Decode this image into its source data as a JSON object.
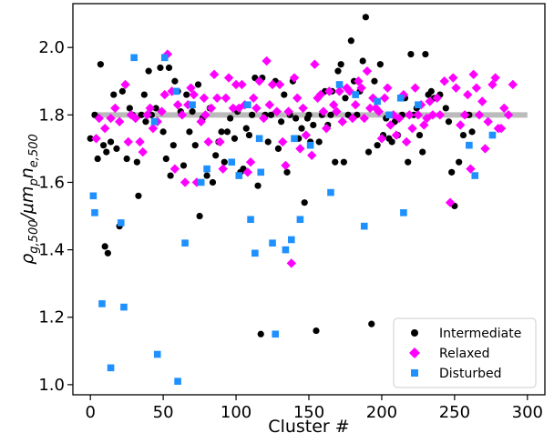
{
  "chart_data": {
    "type": "scatter",
    "xlabel": "Cluster #",
    "ylabel_main": "ρ",
    "ylabel_main_sub": "g,500",
    "ylabel_mid": "/μm",
    "ylabel_mid_sub": "p",
    "ylabel_tail": "n",
    "ylabel_tail_sub": "e,500",
    "xlim": [
      -12,
      312
    ],
    "ylim": [
      0.97,
      2.13
    ],
    "xticks": [
      "0",
      "50",
      "100",
      "150",
      "200",
      "250",
      "300"
    ],
    "yticks": [
      "1.0",
      "1.2",
      "1.4",
      "1.6",
      "1.8",
      "2.0"
    ],
    "reference_band": {
      "y": 1.8,
      "x_range": [
        1,
        300
      ],
      "color": "#bbbbbb"
    },
    "grid": false,
    "legend_position": "lower-right",
    "series": [
      {
        "name": "Intermediate",
        "marker": "circle",
        "color": "#000000",
        "points": [
          [
            0,
            1.73
          ],
          [
            3,
            1.8
          ],
          [
            5,
            1.67
          ],
          [
            7,
            1.95
          ],
          [
            9,
            1.71
          ],
          [
            10,
            1.41
          ],
          [
            11,
            1.69
          ],
          [
            12,
            1.39
          ],
          [
            14,
            1.72
          ],
          [
            16,
            1.86
          ],
          [
            18,
            1.7
          ],
          [
            20,
            1.47
          ],
          [
            22,
            1.87
          ],
          [
            25,
            1.67
          ],
          [
            27,
            1.82
          ],
          [
            29,
            1.8
          ],
          [
            32,
            1.66
          ],
          [
            33,
            1.56
          ],
          [
            35,
            1.8
          ],
          [
            37,
            1.86
          ],
          [
            38,
            1.78
          ],
          [
            40,
            1.93
          ],
          [
            42,
            1.8
          ],
          [
            45,
            1.82
          ],
          [
            48,
            1.94
          ],
          [
            50,
            1.75
          ],
          [
            52,
            1.67
          ],
          [
            54,
            1.94
          ],
          [
            55,
            1.62
          ],
          [
            57,
            1.71
          ],
          [
            58,
            1.9
          ],
          [
            60,
            1.87
          ],
          [
            62,
            1.81
          ],
          [
            64,
            1.65
          ],
          [
            66,
            1.86
          ],
          [
            68,
            1.75
          ],
          [
            70,
            1.81
          ],
          [
            72,
            1.71
          ],
          [
            74,
            1.89
          ],
          [
            75,
            1.5
          ],
          [
            77,
            1.79
          ],
          [
            80,
            1.62
          ],
          [
            82,
            1.82
          ],
          [
            84,
            1.6
          ],
          [
            86,
            1.68
          ],
          [
            88,
            1.72
          ],
          [
            90,
            1.75
          ],
          [
            92,
            1.66
          ],
          [
            94,
            1.75
          ],
          [
            96,
            1.79
          ],
          [
            99,
            1.73
          ],
          [
            101,
            1.81
          ],
          [
            103,
            1.63
          ],
          [
            105,
            1.64
          ],
          [
            107,
            1.76
          ],
          [
            109,
            1.74
          ],
          [
            111,
            1.8
          ],
          [
            113,
            1.91
          ],
          [
            115,
            1.59
          ],
          [
            117,
            1.15
          ],
          [
            118,
            1.91
          ],
          [
            120,
            1.8
          ],
          [
            122,
            1.72
          ],
          [
            124,
            1.8
          ],
          [
            127,
            1.9
          ],
          [
            129,
            1.7
          ],
          [
            131,
            1.78
          ],
          [
            133,
            1.86
          ],
          [
            135,
            1.63
          ],
          [
            137,
            1.8
          ],
          [
            139,
            1.9
          ],
          [
            141,
            1.79
          ],
          [
            143,
            1.73
          ],
          [
            145,
            1.76
          ],
          [
            147,
            1.54
          ],
          [
            149,
            1.79
          ],
          [
            150,
            1.8
          ],
          [
            151,
            1.72
          ],
          [
            153,
            1.77
          ],
          [
            155,
            1.16
          ],
          [
            157,
            1.72
          ],
          [
            159,
            1.8
          ],
          [
            161,
            1.87
          ],
          [
            163,
            1.77
          ],
          [
            165,
            1.8
          ],
          [
            166,
            1.87
          ],
          [
            168,
            1.66
          ],
          [
            170,
            1.93
          ],
          [
            172,
            1.95
          ],
          [
            174,
            1.66
          ],
          [
            175,
            1.85
          ],
          [
            177,
            1.8
          ],
          [
            179,
            2.02
          ],
          [
            181,
            1.9
          ],
          [
            183,
            1.8
          ],
          [
            185,
            1.87
          ],
          [
            187,
            1.96
          ],
          [
            189,
            2.09
          ],
          [
            191,
            1.69
          ],
          [
            193,
            1.18
          ],
          [
            195,
            1.9
          ],
          [
            197,
            1.71
          ],
          [
            199,
            1.95
          ],
          [
            201,
            1.74
          ],
          [
            203,
            1.79
          ],
          [
            205,
            1.73
          ],
          [
            207,
            1.72
          ],
          [
            209,
            1.78
          ],
          [
            211,
            1.74
          ],
          [
            214,
            1.8
          ],
          [
            216,
            1.85
          ],
          [
            218,
            1.66
          ],
          [
            220,
            1.98
          ],
          [
            222,
            1.8
          ],
          [
            224,
            1.82
          ],
          [
            226,
            1.74
          ],
          [
            228,
            1.69
          ],
          [
            230,
            1.98
          ],
          [
            232,
            1.86
          ],
          [
            234,
            1.87
          ],
          [
            236,
            1.85
          ],
          [
            240,
            1.86
          ],
          [
            244,
            1.82
          ],
          [
            246,
            1.78
          ],
          [
            248,
            1.63
          ],
          [
            250,
            1.53
          ],
          [
            253,
            1.66
          ],
          [
            256,
            1.74
          ],
          [
            258,
            1.8
          ],
          [
            260,
            1.8
          ],
          [
            262,
            1.75
          ]
        ]
      },
      {
        "name": "Relaxed",
        "marker": "diamond",
        "color": "#ff00ff",
        "points": [
          [
            4,
            1.73
          ],
          [
            6,
            1.79
          ],
          [
            10,
            1.76
          ],
          [
            14,
            1.79
          ],
          [
            17,
            1.82
          ],
          [
            20,
            1.78
          ],
          [
            24,
            1.89
          ],
          [
            26,
            1.72
          ],
          [
            28,
            1.8
          ],
          [
            31,
            1.79
          ],
          [
            34,
            1.72
          ],
          [
            36,
            1.69
          ],
          [
            39,
            1.8
          ],
          [
            41,
            1.82
          ],
          [
            43,
            1.76
          ],
          [
            46,
            1.78
          ],
          [
            49,
            1.81
          ],
          [
            51,
            1.86
          ],
          [
            53,
            1.98
          ],
          [
            56,
            1.87
          ],
          [
            58,
            1.64
          ],
          [
            60,
            1.83
          ],
          [
            63,
            1.8
          ],
          [
            65,
            1.6
          ],
          [
            67,
            1.83
          ],
          [
            69,
            1.88
          ],
          [
            71,
            1.86
          ],
          [
            73,
            1.6
          ],
          [
            76,
            1.78
          ],
          [
            78,
            1.85
          ],
          [
            79,
            1.8
          ],
          [
            81,
            1.72
          ],
          [
            83,
            1.82
          ],
          [
            85,
            1.92
          ],
          [
            87,
            1.85
          ],
          [
            89,
            1.72
          ],
          [
            91,
            1.64
          ],
          [
            93,
            1.85
          ],
          [
            95,
            1.91
          ],
          [
            98,
            1.82
          ],
          [
            100,
            1.89
          ],
          [
            102,
            1.82
          ],
          [
            104,
            1.89
          ],
          [
            106,
            1.83
          ],
          [
            108,
            1.63
          ],
          [
            110,
            1.66
          ],
          [
            112,
            1.85
          ],
          [
            114,
            1.82
          ],
          [
            116,
            1.9
          ],
          [
            119,
            1.79
          ],
          [
            121,
            1.96
          ],
          [
            123,
            1.83
          ],
          [
            125,
            1.89
          ],
          [
            128,
            1.81
          ],
          [
            130,
            1.89
          ],
          [
            132,
            1.72
          ],
          [
            134,
            1.65
          ],
          [
            136,
            1.81
          ],
          [
            138,
            1.36
          ],
          [
            140,
            1.91
          ],
          [
            142,
            1.85
          ],
          [
            144,
            1.7
          ],
          [
            146,
            1.82
          ],
          [
            148,
            1.74
          ],
          [
            152,
            1.68
          ],
          [
            154,
            1.95
          ],
          [
            156,
            1.85
          ],
          [
            158,
            1.86
          ],
          [
            160,
            1.81
          ],
          [
            162,
            1.76
          ],
          [
            164,
            1.87
          ],
          [
            167,
            1.83
          ],
          [
            169,
            1.81
          ],
          [
            171,
            1.87
          ],
          [
            173,
            1.78
          ],
          [
            176,
            1.88
          ],
          [
            178,
            1.87
          ],
          [
            180,
            1.79
          ],
          [
            182,
            1.83
          ],
          [
            184,
            1.9
          ],
          [
            186,
            1.88
          ],
          [
            188,
            1.79
          ],
          [
            190,
            1.93
          ],
          [
            192,
            1.82
          ],
          [
            194,
            1.85
          ],
          [
            196,
            1.82
          ],
          [
            198,
            1.81
          ],
          [
            200,
            1.73
          ],
          [
            202,
            1.85
          ],
          [
            204,
            1.88
          ],
          [
            206,
            1.77
          ],
          [
            208,
            1.8
          ],
          [
            210,
            1.74
          ],
          [
            212,
            1.79
          ],
          [
            215,
            1.86
          ],
          [
            217,
            1.72
          ],
          [
            219,
            1.8
          ],
          [
            221,
            1.76
          ],
          [
            223,
            1.88
          ],
          [
            225,
            1.8
          ],
          [
            227,
            1.83
          ],
          [
            229,
            1.77
          ],
          [
            231,
            1.79
          ],
          [
            233,
            1.84
          ],
          [
            235,
            1.8
          ],
          [
            238,
            1.85
          ],
          [
            240,
            1.8
          ],
          [
            243,
            1.9
          ],
          [
            247,
            1.54
          ],
          [
            249,
            1.91
          ],
          [
            251,
            1.88
          ],
          [
            254,
            1.77
          ],
          [
            257,
            1.8
          ],
          [
            259,
            1.86
          ],
          [
            261,
            1.64
          ],
          [
            263,
            1.92
          ],
          [
            265,
            1.88
          ],
          [
            267,
            1.8
          ],
          [
            269,
            1.84
          ],
          [
            271,
            1.7
          ],
          [
            273,
            1.78
          ],
          [
            276,
            1.89
          ],
          [
            278,
            1.91
          ],
          [
            280,
            1.76
          ],
          [
            282,
            1.76
          ],
          [
            284,
            1.82
          ],
          [
            287,
            1.8
          ],
          [
            290,
            1.89
          ]
        ]
      },
      {
        "name": "Disturbed",
        "marker": "square",
        "color": "#1e90ff",
        "points": [
          [
            2,
            1.56
          ],
          [
            3,
            1.51
          ],
          [
            8,
            1.24
          ],
          [
            14,
            1.05
          ],
          [
            21,
            1.48
          ],
          [
            23,
            1.23
          ],
          [
            30,
            1.97
          ],
          [
            44,
            1.78
          ],
          [
            46,
            1.09
          ],
          [
            51,
            1.97
          ],
          [
            59,
            1.87
          ],
          [
            60,
            1.01
          ],
          [
            65,
            1.42
          ],
          [
            70,
            1.83
          ],
          [
            76,
            1.6
          ],
          [
            80,
            1.64
          ],
          [
            97,
            1.66
          ],
          [
            102,
            1.62
          ],
          [
            108,
            1.83
          ],
          [
            110,
            1.49
          ],
          [
            113,
            1.39
          ],
          [
            116,
            1.73
          ],
          [
            117,
            1.63
          ],
          [
            125,
            1.42
          ],
          [
            127,
            1.15
          ],
          [
            134,
            1.4
          ],
          [
            138,
            1.43
          ],
          [
            140,
            1.73
          ],
          [
            144,
            1.49
          ],
          [
            151,
            1.71
          ],
          [
            165,
            1.57
          ],
          [
            171,
            1.89
          ],
          [
            182,
            1.86
          ],
          [
            188,
            1.47
          ],
          [
            197,
            1.84
          ],
          [
            205,
            1.8
          ],
          [
            213,
            1.85
          ],
          [
            215,
            1.51
          ],
          [
            225,
            1.83
          ],
          [
            260,
            1.71
          ],
          [
            264,
            1.62
          ],
          [
            276,
            1.74
          ]
        ]
      }
    ]
  }
}
